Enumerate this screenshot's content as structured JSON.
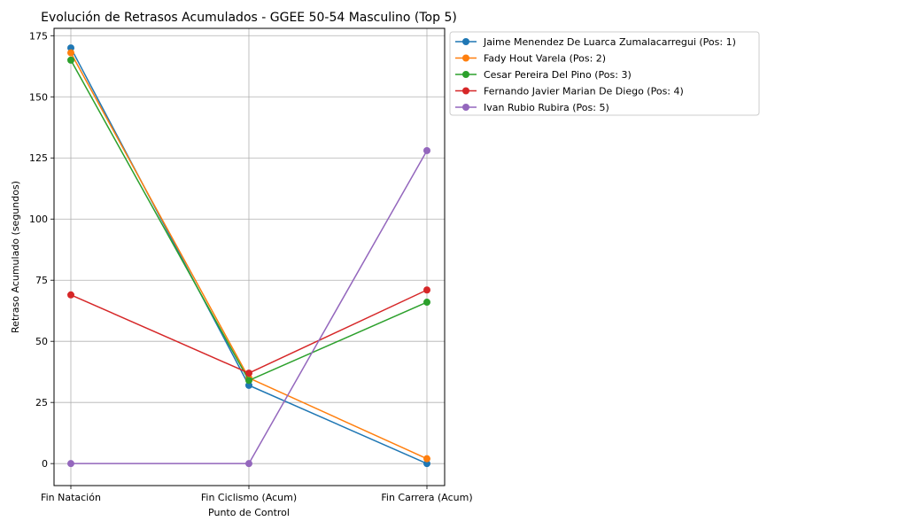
{
  "chart_data": {
    "type": "line",
    "title": "Evolución de Retrasos Acumulados - GGEE 50-54 Masculino (Top 5)",
    "xlabel": "Punto de Control",
    "ylabel": "Retraso Acumulado (segundos)",
    "categories": [
      "Fin Natación",
      "Fin Ciclismo (Acum)",
      "Fin Carrera (Acum)"
    ],
    "ylim": [
      -9,
      178
    ],
    "yticks": [
      0,
      25,
      50,
      75,
      100,
      125,
      150,
      175
    ],
    "grid": true,
    "legend_position": "outside-top-right",
    "series": [
      {
        "name": "Jaime Menendez De Luarca Zumalacarregui (Pos: 1)",
        "color": "#1f77b4",
        "values": [
          170,
          32,
          0
        ]
      },
      {
        "name": "Fady Hout Varela (Pos: 2)",
        "color": "#ff7f0e",
        "values": [
          168,
          35,
          2
        ]
      },
      {
        "name": "Cesar Pereira Del Pino (Pos: 3)",
        "color": "#2ca02c",
        "values": [
          165,
          34,
          66
        ]
      },
      {
        "name": "Fernando Javier Marian De Diego (Pos: 4)",
        "color": "#d62728",
        "values": [
          69,
          37,
          71
        ]
      },
      {
        "name": "Ivan Rubio Rubira (Pos: 5)",
        "color": "#9467bd",
        "values": [
          0,
          0,
          128
        ]
      }
    ]
  }
}
